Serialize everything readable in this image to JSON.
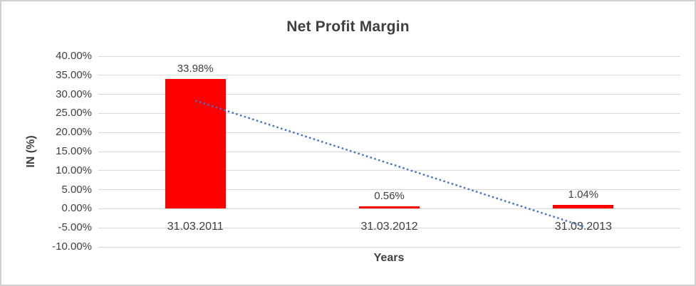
{
  "chart_data": {
    "type": "bar",
    "title": "Net Profit Margin",
    "categories": [
      "31.03.2011",
      "31.03.2012",
      "31.03.2013"
    ],
    "values": [
      33.98,
      0.56,
      1.04
    ],
    "data_labels": [
      "33.98%",
      "0.56%",
      "1.04%"
    ],
    "xlabel": "Years",
    "ylabel": "IN (%)",
    "ylim": [
      -10,
      40
    ],
    "ytick_step": 5,
    "ytick_labels": [
      "40.00%",
      "35.00%",
      "30.00%",
      "25.00%",
      "20.00%",
      "15.00%",
      "10.00%",
      "5.00%",
      "0.00%",
      "-5.00%",
      "-10.00%"
    ],
    "grid": true,
    "legend": "none",
    "trendline": {
      "type": "linear",
      "style": "dotted",
      "endpoint_values": [
        28.33,
        -4.61
      ]
    },
    "colors": {
      "bar": "#ff0000",
      "trendline": "#4472c4",
      "gridline": "#d9d9d9",
      "text": "#404040",
      "border": "#d0d0d0",
      "background": "#ffffff"
    }
  }
}
